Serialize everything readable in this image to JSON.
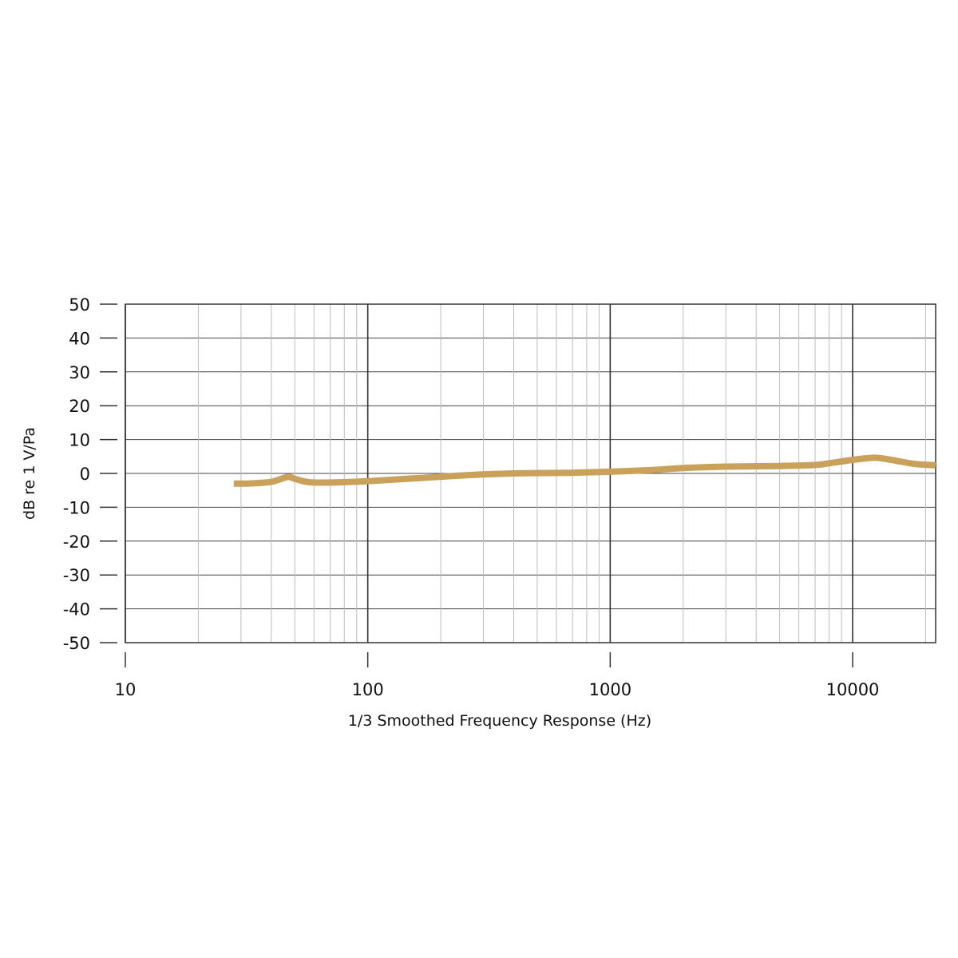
{
  "chart_data": {
    "type": "line",
    "xscale": "log",
    "xlim": [
      10,
      22000
    ],
    "ylim": [
      -50,
      50
    ],
    "xlabel": "1/3 Smoothed Frequency Response (Hz)",
    "ylabel": "dB re 1 V/Pa",
    "x_ticks": [
      10,
      100,
      1000,
      10000
    ],
    "x_tick_labels": [
      "10",
      "100",
      "1000",
      "10000"
    ],
    "y_ticks": [
      50,
      40,
      30,
      20,
      10,
      0,
      -10,
      -20,
      -30,
      -40,
      -50
    ],
    "y_tick_labels": [
      "50",
      "40",
      "30",
      "20",
      "10",
      "0",
      "-10",
      "-20",
      "-30",
      "-40",
      "-50"
    ],
    "grid": true,
    "legend": "none",
    "line_color": "#c9a15a",
    "series": [
      {
        "x": [
          28,
          32,
          36,
          40,
          44,
          47,
          50,
          55,
          60,
          70,
          80,
          100,
          130,
          170,
          220,
          300,
          400,
          500,
          700,
          1000,
          1500,
          2000,
          3000,
          5000,
          7000,
          8000,
          10000,
          12000,
          13000,
          15000,
          18000,
          22000
        ],
        "values": [
          -3,
          -3,
          -2.8,
          -2.5,
          -1.6,
          -1.0,
          -1.6,
          -2.4,
          -2.7,
          -2.7,
          -2.6,
          -2.3,
          -1.8,
          -1.3,
          -0.8,
          -0.3,
          0,
          0.1,
          0.2,
          0.5,
          1.0,
          1.6,
          2.0,
          2.2,
          2.5,
          3.0,
          4.0,
          4.6,
          4.5,
          3.8,
          2.8,
          2.4
        ]
      }
    ]
  }
}
